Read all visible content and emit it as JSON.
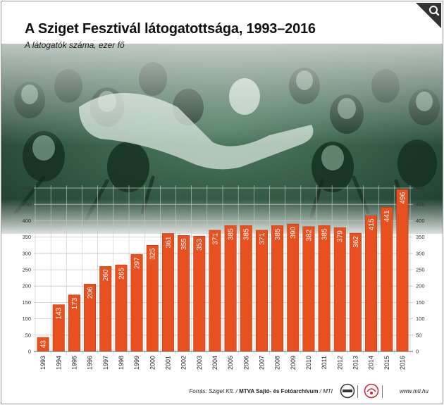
{
  "title": "A Sziget Fesztivál látogatottsága, 1993–2016",
  "subtitle": "A látogatók száma, ezer fő",
  "source_prefix": "Forrás: Sziget Kft. / ",
  "source_bold": "MTVA Sajtó- és Fotóarchívum",
  "source_suffix": " / MTI",
  "url": "www.mti.hu",
  "colors": {
    "bar": "#e8501f",
    "bar_edge": "#b8360e",
    "photo_tint": "#2f5f45",
    "grid": "#c8c8c8"
  },
  "icons": {
    "zoom": "magnifier-icon",
    "logo1": "mtva-logo",
    "logo2": "mti-logo"
  },
  "chart_data": {
    "type": "bar",
    "title": "A Sziget Fesztivál látogatottsága, 1993–2016",
    "subtitle": "A látogatók száma, ezer fő",
    "categories": [
      "1993",
      "1994",
      "1995",
      "1996",
      "1997",
      "1998",
      "1999",
      "2000",
      "2001",
      "2002",
      "2003",
      "2004",
      "2005",
      "2006",
      "2007",
      "2008",
      "2009",
      "2010",
      "2011",
      "2012",
      "2013",
      "2014",
      "2015",
      "2016"
    ],
    "values": [
      43,
      143,
      173,
      206,
      260,
      265,
      297,
      325,
      361,
      355,
      353,
      371,
      385,
      385,
      371,
      385,
      390,
      382,
      385,
      379,
      362,
      415,
      441,
      496
    ],
    "ylim": [
      0,
      500
    ],
    "yticks": [
      0,
      50,
      100,
      150,
      200,
      250,
      300,
      350,
      400,
      450,
      500
    ],
    "grid": true
  }
}
